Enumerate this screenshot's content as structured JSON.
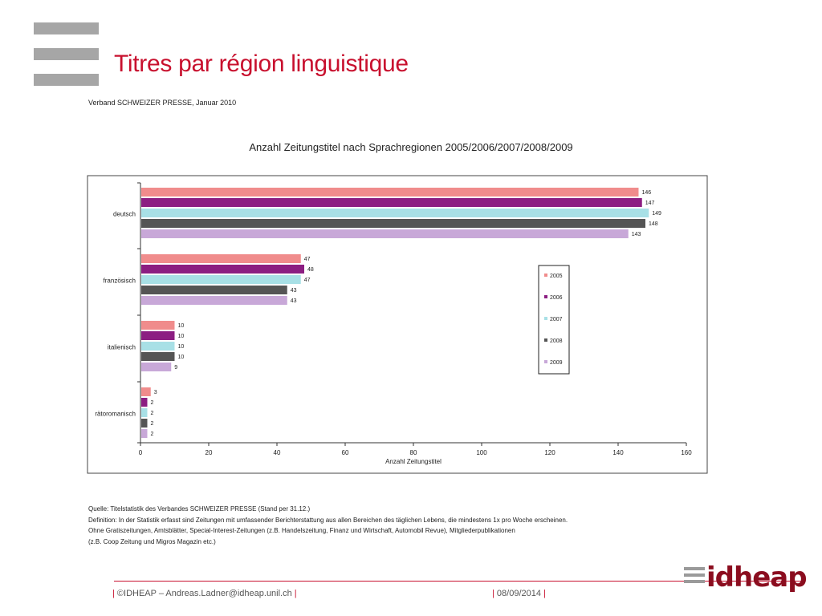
{
  "slide": {
    "title": "Titres par région linguistique",
    "source_top": "Verband SCHWEIZER PRESSE, Januar 2010"
  },
  "notes": [
    "Quelle: Titelstatistik des Verbandes SCHWEIZER PRESSE (Stand per 31.12.)",
    "Definition: In der Statistik erfasst sind Zeitungen mit umfassender Berichterstattung aus allen Bereichen des täglichen Lebens, die mindestens 1x pro Woche erscheinen.",
    "Ohne Gratiszeitungen, Amtsblätter, Special-Interest-Zeitungen (z.B. Handelszeitung, Finanz und Wirtschaft, Automobil Revue), Mitgliederpublikationen",
    "(z.B. Coop Zeitung und Migros Magazin etc.)"
  ],
  "footer": {
    "copyright": "©IDHEAP – Andreas.Ladner@idheap.unil.ch",
    "date": "08/09/2014",
    "logo_text": "idheap"
  },
  "colors": {
    "title_red": "#c8102e",
    "s2005": "#f08c8c",
    "s2006": "#8c1e82",
    "s2007": "#a8e0e6",
    "s2008": "#555555",
    "s2009": "#c8a8d8"
  },
  "chart_data": {
    "type": "bar",
    "orientation": "horizontal",
    "title": "Anzahl Zeitungstitel nach Sprachregionen 2005/2006/2007/2008/2009",
    "xlabel": "Anzahl Zeitungstitel",
    "ylabel": "",
    "xlim": [
      0,
      160
    ],
    "xticks": [
      0,
      20,
      40,
      60,
      80,
      100,
      120,
      140,
      160
    ],
    "grid": false,
    "legend_position": "right",
    "categories": [
      "deutsch",
      "französisch",
      "italienisch",
      "rätoromanisch"
    ],
    "series": [
      {
        "name": "2005",
        "color": "#f08c8c",
        "values": [
          146,
          47,
          10,
          3
        ]
      },
      {
        "name": "2006",
        "color": "#8c1e82",
        "values": [
          147,
          48,
          10,
          2
        ]
      },
      {
        "name": "2007",
        "color": "#a8e0e6",
        "values": [
          149,
          47,
          10,
          2
        ]
      },
      {
        "name": "2008",
        "color": "#555555",
        "values": [
          148,
          43,
          10,
          2
        ]
      },
      {
        "name": "2009",
        "color": "#c8a8d8",
        "values": [
          143,
          43,
          9,
          2
        ]
      }
    ]
  }
}
